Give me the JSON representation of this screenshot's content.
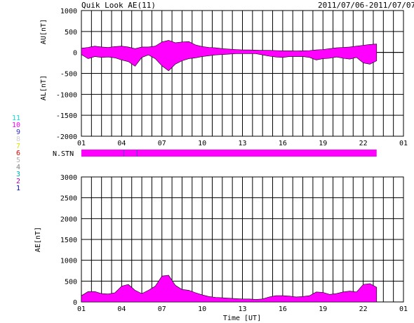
{
  "header": {
    "title": "Quik Look AE(11)",
    "date_range": "2011/07/06-2011/07/07"
  },
  "colors": {
    "fill": "#ff00ff",
    "grid": "#000000",
    "background": "#ffffff",
    "marker": "#4a4ab8"
  },
  "legend": {
    "items": [
      {
        "label": "11",
        "color": "#00e0e0"
      },
      {
        "label": "10",
        "color": "#ff00ff"
      },
      {
        "label": "9",
        "color": "#3030c0"
      },
      {
        "label": "8",
        "color": "#d0d0d0"
      },
      {
        "label": "7",
        "color": "#e0e000"
      },
      {
        "label": "6",
        "color": "#e00000"
      },
      {
        "label": "5",
        "color": "#b0b0b0"
      },
      {
        "label": "4",
        "color": "#808080"
      },
      {
        "label": "3",
        "color": "#00b0b0"
      },
      {
        "label": "2",
        "color": "#b000b0"
      },
      {
        "label": "1",
        "color": "#0000c0"
      }
    ]
  },
  "chart_data": [
    {
      "type": "area",
      "title": "AU/AL",
      "ylabel_upper": "AU[nT]",
      "ylabel_lower": "AL[nT]",
      "ylim": [
        -2000,
        1000
      ],
      "yticks": [
        1000,
        500,
        0,
        -500,
        -1000,
        -1500,
        -2000
      ],
      "xlim": [
        0,
        24
      ],
      "xticks": [
        "01",
        "04",
        "07",
        "10",
        "13",
        "16",
        "19",
        "22",
        "01"
      ],
      "grid": true,
      "series": [
        {
          "name": "AU",
          "x": [
            0,
            0.5,
            1,
            1.5,
            2,
            2.5,
            3,
            3.5,
            4,
            4.5,
            5,
            5.5,
            6,
            6.5,
            7,
            7.5,
            8,
            8.5,
            9,
            9.5,
            10,
            10.5,
            11,
            11.5,
            12,
            12.5,
            13,
            13.5,
            14,
            14.5,
            15,
            15.5,
            16,
            16.5,
            17,
            17.5,
            18,
            18.5,
            19,
            19.5,
            20,
            20.5,
            21,
            21.5,
            22
          ],
          "values": [
            100,
            120,
            150,
            130,
            120,
            140,
            150,
            130,
            90,
            130,
            130,
            150,
            250,
            290,
            230,
            250,
            260,
            180,
            140,
            120,
            110,
            90,
            80,
            70,
            60,
            60,
            55,
            50,
            50,
            45,
            40,
            40,
            35,
            40,
            45,
            60,
            70,
            90,
            110,
            120,
            130,
            150,
            170,
            190,
            200
          ]
        },
        {
          "name": "AL",
          "x": [
            0,
            0.5,
            1,
            1.5,
            2,
            2.5,
            3,
            3.5,
            4,
            4.5,
            5,
            5.5,
            6,
            6.5,
            7,
            7.5,
            8,
            8.5,
            9,
            9.5,
            10,
            10.5,
            11,
            11.5,
            12,
            12.5,
            13,
            13.5,
            14,
            14.5,
            15,
            15.5,
            16,
            16.5,
            17,
            17.5,
            18,
            18.5,
            19,
            19.5,
            20,
            20.5,
            21,
            21.5,
            22
          ],
          "values": [
            -50,
            -150,
            -100,
            -120,
            -110,
            -130,
            -180,
            -220,
            -330,
            -120,
            -60,
            -150,
            -320,
            -440,
            -280,
            -200,
            -150,
            -130,
            -100,
            -80,
            -60,
            -50,
            -40,
            -30,
            -30,
            -30,
            -30,
            -60,
            -90,
            -110,
            -120,
            -100,
            -100,
            -100,
            -120,
            -180,
            -150,
            -140,
            -110,
            -140,
            -160,
            -120,
            -250,
            -280,
            -200
          ]
        }
      ]
    },
    {
      "type": "bar",
      "title": "N.STN",
      "label": "N.STN",
      "xlim": [
        0,
        24
      ],
      "xticks": [
        "01",
        "04",
        "07",
        "10",
        "13",
        "16",
        "19",
        "22",
        "01"
      ],
      "segments": [
        {
          "start": 0,
          "end": 22,
          "value": 10
        }
      ],
      "markers": [
        3.15,
        4.15
      ]
    },
    {
      "type": "area",
      "title": "AE",
      "ylabel": "AE[nT]",
      "xlabel": "Time [UT]",
      "ylim": [
        0,
        3000
      ],
      "yticks": [
        3000,
        2500,
        2000,
        1500,
        1000,
        500,
        0
      ],
      "xlim": [
        0,
        24
      ],
      "xticks": [
        "01",
        "04",
        "07",
        "10",
        "13",
        "16",
        "19",
        "22",
        "01"
      ],
      "grid": true,
      "series": [
        {
          "name": "AE",
          "x": [
            0,
            0.5,
            1,
            1.5,
            2,
            2.5,
            3,
            3.5,
            4,
            4.5,
            5,
            5.5,
            6,
            6.5,
            7,
            7.5,
            8,
            8.5,
            9,
            9.5,
            10,
            10.5,
            11,
            11.5,
            12,
            12.5,
            13,
            13.5,
            14,
            14.5,
            15,
            15.5,
            16,
            16.5,
            17,
            17.5,
            18,
            18.5,
            19,
            19.5,
            20,
            20.5,
            21,
            21.5,
            22
          ],
          "values": [
            150,
            250,
            250,
            200,
            190,
            220,
            380,
            420,
            280,
            200,
            280,
            380,
            620,
            640,
            400,
            300,
            280,
            220,
            170,
            130,
            110,
            100,
            90,
            80,
            70,
            70,
            60,
            70,
            120,
            150,
            150,
            140,
            120,
            130,
            150,
            240,
            230,
            180,
            200,
            240,
            260,
            240,
            420,
            440,
            350
          ]
        }
      ]
    }
  ]
}
